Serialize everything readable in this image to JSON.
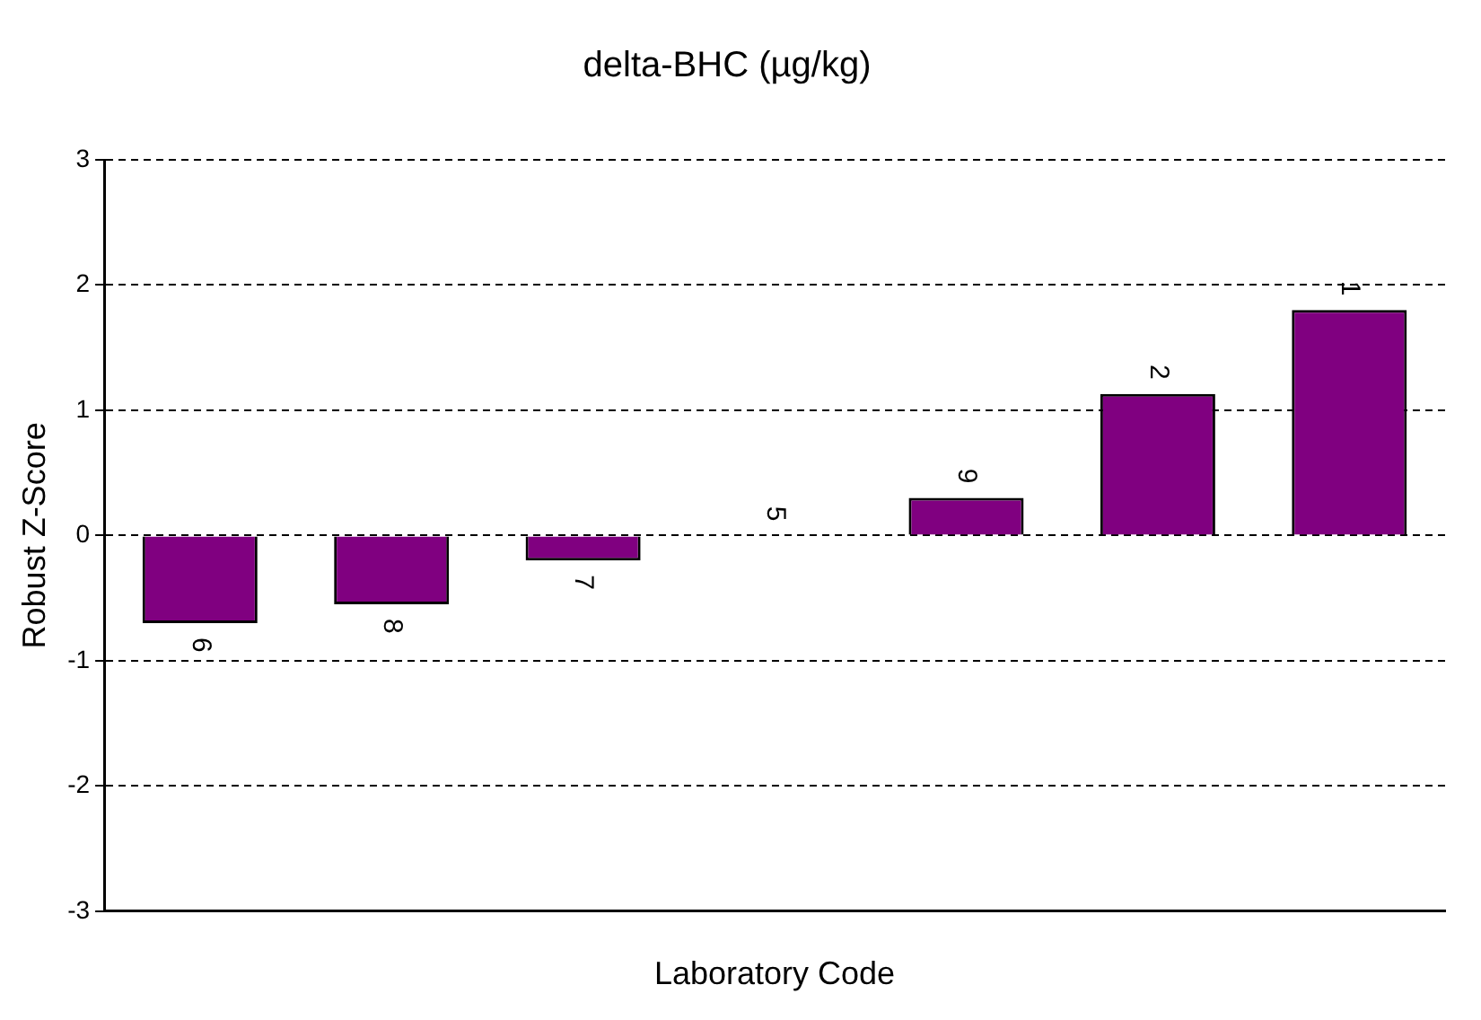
{
  "chart_data": {
    "type": "bar",
    "title": "delta-BHC (µg/kg)",
    "xlabel": "Laboratory Code",
    "ylabel": "Robust Z-Score",
    "categories": [
      "6",
      "8",
      "7",
      "5",
      "9",
      "2",
      "1"
    ],
    "values": [
      -0.7,
      -0.55,
      -0.2,
      0,
      0.3,
      1.13,
      1.8
    ],
    "color": "#800080",
    "ylim": [
      -3,
      3
    ],
    "yticks": [
      -3,
      -2,
      -1,
      0,
      1,
      2,
      3
    ],
    "grid": "y",
    "tick_labels": "y"
  }
}
